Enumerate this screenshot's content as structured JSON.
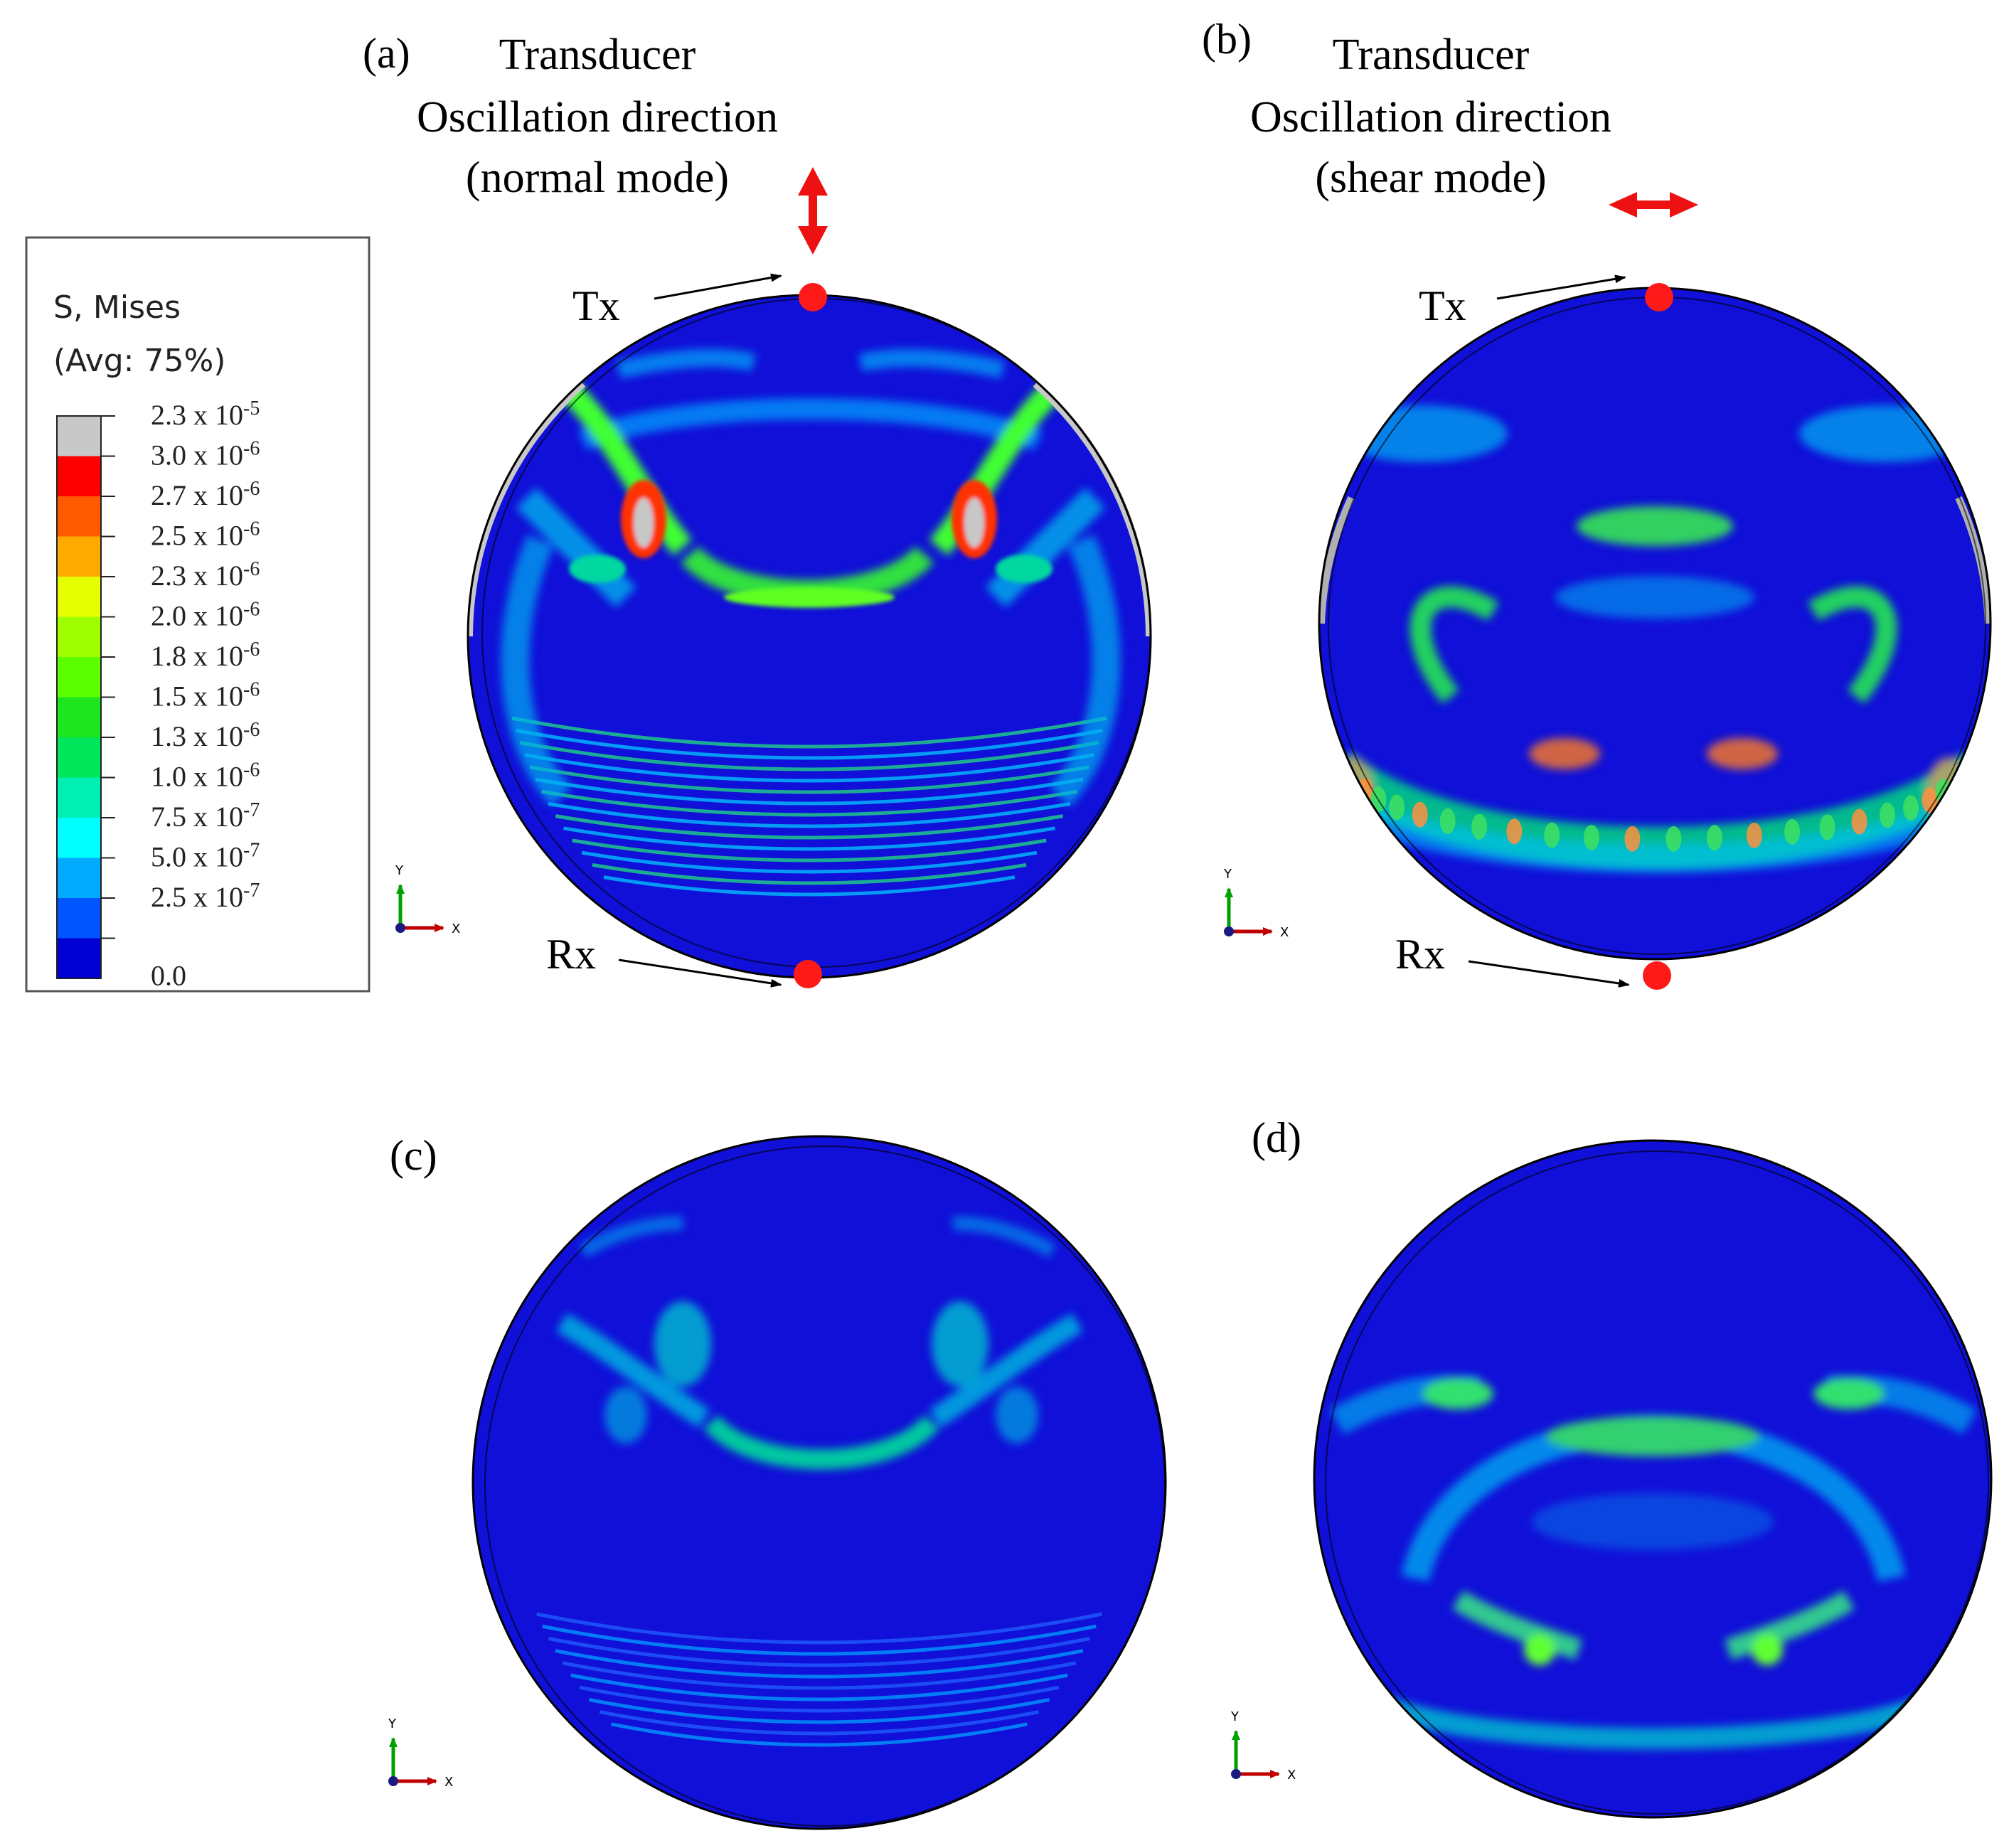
{
  "legend": {
    "title_line1": "S, Mises",
    "title_line2": "(Avg: 75%)",
    "entries": [
      {
        "mant": "2.3 x 10",
        "exp": "-5",
        "color": "#c8c8c8"
      },
      {
        "mant": "3.0 x 10",
        "exp": "-6",
        "color": "#ff0000"
      },
      {
        "mant": "2.7 x 10",
        "exp": "-6",
        "color": "#ff5a00"
      },
      {
        "mant": "2.5 x 10",
        "exp": "-6",
        "color": "#ffaa00"
      },
      {
        "mant": "2.3 x 10",
        "exp": "-6",
        "color": "#e6ff00"
      },
      {
        "mant": "2.0 x 10",
        "exp": "-6",
        "color": "#9fff00"
      },
      {
        "mant": "1.8 x 10",
        "exp": "-6",
        "color": "#5bff00"
      },
      {
        "mant": "1.5 x 10",
        "exp": "-6",
        "color": "#1ee61e"
      },
      {
        "mant": "1.3 x 10",
        "exp": "-6",
        "color": "#00e65a"
      },
      {
        "mant": "1.0 x 10",
        "exp": "-6",
        "color": "#00f0b4"
      },
      {
        "mant": "7.5 x 10",
        "exp": "-7",
        "color": "#00ffff"
      },
      {
        "mant": "5.0 x 10",
        "exp": "-7",
        "color": "#00aaff"
      },
      {
        "mant": "2.5 x 10",
        "exp": "-7",
        "color": "#0055ff"
      },
      {
        "mant": "0.0",
        "exp": "",
        "color": "#0000d2"
      }
    ]
  },
  "panels": {
    "a": {
      "label": "(a)",
      "title": [
        "Transducer",
        "Oscillation direction",
        "(normal mode)"
      ],
      "tx": "Tx",
      "rx": "Rx"
    },
    "b": {
      "label": "(b)",
      "title": [
        "Transducer",
        "Oscillation direction",
        "(shear mode)"
      ],
      "tx": "Tx",
      "rx": "Rx"
    },
    "c": {
      "label": "(c)"
    },
    "d": {
      "label": "(d)"
    }
  },
  "axis_triad": {
    "y": "Y",
    "x": "X"
  },
  "colors": {
    "background_field": "#1010d8",
    "transducer_dot": "#ff1a1a",
    "arrow": "#ee1111",
    "outline": "#000000"
  }
}
